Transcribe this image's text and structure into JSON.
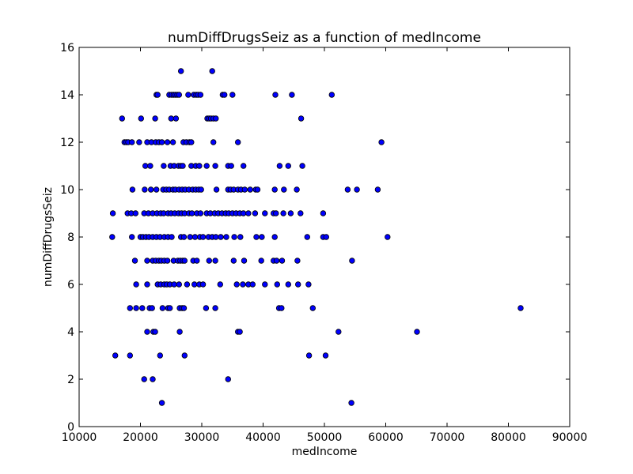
{
  "chart_data": {
    "type": "scatter",
    "title": "numDiffDrugsSeiz as a function of medIncome",
    "xlabel": "medIncome",
    "ylabel": "numDiffDrugsSeiz",
    "xlim": [
      10000,
      90000
    ],
    "ylim": [
      0,
      16
    ],
    "xticks": [
      10000,
      20000,
      30000,
      40000,
      50000,
      60000,
      70000,
      80000,
      90000
    ],
    "yticks": [
      0,
      2,
      4,
      6,
      8,
      10,
      12,
      14,
      16
    ],
    "grid": false,
    "marker_color": "#0000ff",
    "marker_edge": "#000000",
    "points": [
      [
        26600,
        15
      ],
      [
        31700,
        15
      ],
      [
        22600,
        14
      ],
      [
        22800,
        14
      ],
      [
        24700,
        14
      ],
      [
        25100,
        14
      ],
      [
        25400,
        14
      ],
      [
        25700,
        14
      ],
      [
        26000,
        14
      ],
      [
        26300,
        14
      ],
      [
        27800,
        14
      ],
      [
        28700,
        14
      ],
      [
        29100,
        14
      ],
      [
        29400,
        14
      ],
      [
        29800,
        14
      ],
      [
        33400,
        14
      ],
      [
        33700,
        14
      ],
      [
        35000,
        14
      ],
      [
        42000,
        14
      ],
      [
        44700,
        14
      ],
      [
        51200,
        14
      ],
      [
        17000,
        13
      ],
      [
        20100,
        13
      ],
      [
        22400,
        13
      ],
      [
        25000,
        13
      ],
      [
        25800,
        13
      ],
      [
        30900,
        13
      ],
      [
        31200,
        13
      ],
      [
        31500,
        13
      ],
      [
        31900,
        13
      ],
      [
        32300,
        13
      ],
      [
        46200,
        13
      ],
      [
        17400,
        12
      ],
      [
        17700,
        12
      ],
      [
        18000,
        12
      ],
      [
        18600,
        12
      ],
      [
        19800,
        12
      ],
      [
        21100,
        12
      ],
      [
        21800,
        12
      ],
      [
        22500,
        12
      ],
      [
        23000,
        12
      ],
      [
        23500,
        12
      ],
      [
        24400,
        12
      ],
      [
        25300,
        12
      ],
      [
        27000,
        12
      ],
      [
        27500,
        12
      ],
      [
        28000,
        12
      ],
      [
        28300,
        12
      ],
      [
        31900,
        12
      ],
      [
        35900,
        12
      ],
      [
        59300,
        12
      ],
      [
        20800,
        11
      ],
      [
        21600,
        11
      ],
      [
        23800,
        11
      ],
      [
        24900,
        11
      ],
      [
        25500,
        11
      ],
      [
        26200,
        11
      ],
      [
        26600,
        11
      ],
      [
        26900,
        11
      ],
      [
        28300,
        11
      ],
      [
        29000,
        11
      ],
      [
        29600,
        11
      ],
      [
        30800,
        11
      ],
      [
        32200,
        11
      ],
      [
        34300,
        11
      ],
      [
        34800,
        11
      ],
      [
        36800,
        11
      ],
      [
        42700,
        11
      ],
      [
        44100,
        11
      ],
      [
        46400,
        11
      ],
      [
        18700,
        10
      ],
      [
        20700,
        10
      ],
      [
        21700,
        10
      ],
      [
        22600,
        10
      ],
      [
        23700,
        10
      ],
      [
        24200,
        10
      ],
      [
        24700,
        10
      ],
      [
        25300,
        10
      ],
      [
        25700,
        10
      ],
      [
        26300,
        10
      ],
      [
        26800,
        10
      ],
      [
        27300,
        10
      ],
      [
        27900,
        10
      ],
      [
        28500,
        10
      ],
      [
        29000,
        10
      ],
      [
        29500,
        10
      ],
      [
        29900,
        10
      ],
      [
        32400,
        10
      ],
      [
        34300,
        10
      ],
      [
        34700,
        10
      ],
      [
        35200,
        10
      ],
      [
        35900,
        10
      ],
      [
        36400,
        10
      ],
      [
        37000,
        10
      ],
      [
        37900,
        10
      ],
      [
        38800,
        10
      ],
      [
        39100,
        10
      ],
      [
        41900,
        10
      ],
      [
        43400,
        10
      ],
      [
        45500,
        10
      ],
      [
        53800,
        10
      ],
      [
        55300,
        10
      ],
      [
        58700,
        10
      ],
      [
        15500,
        9
      ],
      [
        17900,
        9
      ],
      [
        18500,
        9
      ],
      [
        19200,
        9
      ],
      [
        20600,
        9
      ],
      [
        21300,
        9
      ],
      [
        22000,
        9
      ],
      [
        22700,
        9
      ],
      [
        23300,
        9
      ],
      [
        23800,
        9
      ],
      [
        24500,
        9
      ],
      [
        25000,
        9
      ],
      [
        25600,
        9
      ],
      [
        26200,
        9
      ],
      [
        26700,
        9
      ],
      [
        27200,
        9
      ],
      [
        27900,
        9
      ],
      [
        28400,
        9
      ],
      [
        29200,
        9
      ],
      [
        29800,
        9
      ],
      [
        30800,
        9
      ],
      [
        31400,
        9
      ],
      [
        32100,
        9
      ],
      [
        32700,
        9
      ],
      [
        33300,
        9
      ],
      [
        33900,
        9
      ],
      [
        34400,
        9
      ],
      [
        35000,
        9
      ],
      [
        35600,
        9
      ],
      [
        36200,
        9
      ],
      [
        36800,
        9
      ],
      [
        37600,
        9
      ],
      [
        38700,
        9
      ],
      [
        40300,
        9
      ],
      [
        41700,
        9
      ],
      [
        42100,
        9
      ],
      [
        43300,
        9
      ],
      [
        44500,
        9
      ],
      [
        46100,
        9
      ],
      [
        49800,
        9
      ],
      [
        15400,
        8
      ],
      [
        18600,
        8
      ],
      [
        20000,
        8
      ],
      [
        20400,
        8
      ],
      [
        20900,
        8
      ],
      [
        21400,
        8
      ],
      [
        22000,
        8
      ],
      [
        22600,
        8
      ],
      [
        23200,
        8
      ],
      [
        23900,
        8
      ],
      [
        24500,
        8
      ],
      [
        25100,
        8
      ],
      [
        26600,
        8
      ],
      [
        27100,
        8
      ],
      [
        28100,
        8
      ],
      [
        28900,
        8
      ],
      [
        29700,
        8
      ],
      [
        30200,
        8
      ],
      [
        31100,
        8
      ],
      [
        31700,
        8
      ],
      [
        32300,
        8
      ],
      [
        33100,
        8
      ],
      [
        34000,
        8
      ],
      [
        35300,
        8
      ],
      [
        36300,
        8
      ],
      [
        38900,
        8
      ],
      [
        39800,
        8
      ],
      [
        41900,
        8
      ],
      [
        47200,
        8
      ],
      [
        49800,
        8
      ],
      [
        50300,
        8
      ],
      [
        60300,
        8
      ],
      [
        19100,
        7
      ],
      [
        21100,
        7
      ],
      [
        22000,
        7
      ],
      [
        22500,
        7
      ],
      [
        23000,
        7
      ],
      [
        23400,
        7
      ],
      [
        23900,
        7
      ],
      [
        24400,
        7
      ],
      [
        25400,
        7
      ],
      [
        26100,
        7
      ],
      [
        26500,
        7
      ],
      [
        26900,
        7
      ],
      [
        27200,
        7
      ],
      [
        28600,
        7
      ],
      [
        29200,
        7
      ],
      [
        31200,
        7
      ],
      [
        32200,
        7
      ],
      [
        35200,
        7
      ],
      [
        36900,
        7
      ],
      [
        39700,
        7
      ],
      [
        41700,
        7
      ],
      [
        42200,
        7
      ],
      [
        43100,
        7
      ],
      [
        45600,
        7
      ],
      [
        54500,
        7
      ],
      [
        19300,
        6
      ],
      [
        21100,
        6
      ],
      [
        22800,
        6
      ],
      [
        23300,
        6
      ],
      [
        23900,
        6
      ],
      [
        24300,
        6
      ],
      [
        24800,
        6
      ],
      [
        25500,
        6
      ],
      [
        26300,
        6
      ],
      [
        27600,
        6
      ],
      [
        28800,
        6
      ],
      [
        29600,
        6
      ],
      [
        30200,
        6
      ],
      [
        33000,
        6
      ],
      [
        35700,
        6
      ],
      [
        36700,
        6
      ],
      [
        37600,
        6
      ],
      [
        38300,
        6
      ],
      [
        40300,
        6
      ],
      [
        42300,
        6
      ],
      [
        44100,
        6
      ],
      [
        45700,
        6
      ],
      [
        47400,
        6
      ],
      [
        18300,
        5
      ],
      [
        19300,
        5
      ],
      [
        20300,
        5
      ],
      [
        21500,
        5
      ],
      [
        21900,
        5
      ],
      [
        23600,
        5
      ],
      [
        24500,
        5
      ],
      [
        24800,
        5
      ],
      [
        26400,
        5
      ],
      [
        26800,
        5
      ],
      [
        27100,
        5
      ],
      [
        30700,
        5
      ],
      [
        32200,
        5
      ],
      [
        42600,
        5
      ],
      [
        43000,
        5
      ],
      [
        48100,
        5
      ],
      [
        82000,
        5
      ],
      [
        21100,
        4
      ],
      [
        22100,
        4
      ],
      [
        22400,
        4
      ],
      [
        26400,
        4
      ],
      [
        35900,
        4
      ],
      [
        36200,
        4
      ],
      [
        52300,
        4
      ],
      [
        65100,
        4
      ],
      [
        15900,
        3
      ],
      [
        18300,
        3
      ],
      [
        23200,
        3
      ],
      [
        27200,
        3
      ],
      [
        47500,
        3
      ],
      [
        50200,
        3
      ],
      [
        20600,
        2
      ],
      [
        22000,
        2
      ],
      [
        34300,
        2
      ],
      [
        23500,
        1
      ],
      [
        54400,
        1
      ]
    ]
  }
}
